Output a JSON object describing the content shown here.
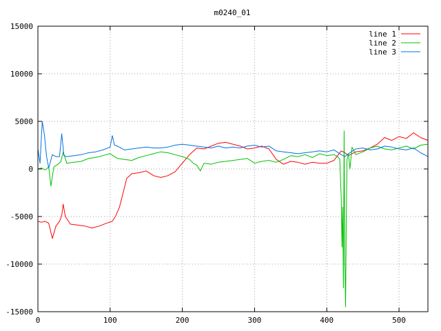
{
  "chart_data": {
    "type": "line",
    "title": "m0240_01",
    "xlabel": "",
    "ylabel": "",
    "xlim": [
      0,
      540
    ],
    "ylim": [
      -15000,
      15000
    ],
    "xticks": [
      0,
      100,
      200,
      300,
      400,
      500
    ],
    "yticks": [
      -15000,
      -10000,
      -5000,
      0,
      5000,
      10000,
      15000
    ],
    "grid": true,
    "legend_position": "top-right",
    "series": [
      {
        "name": "line 1",
        "color": "#ff0000",
        "points": [
          [
            0,
            -5500
          ],
          [
            5,
            -5600
          ],
          [
            10,
            -5500
          ],
          [
            15,
            -5700
          ],
          [
            20,
            -7300
          ],
          [
            25,
            -6000
          ],
          [
            30,
            -5500
          ],
          [
            33,
            -4900
          ],
          [
            35,
            -3700
          ],
          [
            38,
            -5000
          ],
          [
            45,
            -5800
          ],
          [
            55,
            -5900
          ],
          [
            65,
            -6000
          ],
          [
            75,
            -6200
          ],
          [
            85,
            -6000
          ],
          [
            95,
            -5700
          ],
          [
            103,
            -5500
          ],
          [
            108,
            -4900
          ],
          [
            113,
            -4000
          ],
          [
            118,
            -2500
          ],
          [
            123,
            -1000
          ],
          [
            130,
            -500
          ],
          [
            140,
            -400
          ],
          [
            150,
            -200
          ],
          [
            160,
            -700
          ],
          [
            170,
            -900
          ],
          [
            180,
            -700
          ],
          [
            190,
            -300
          ],
          [
            200,
            600
          ],
          [
            210,
            1500
          ],
          [
            220,
            2200
          ],
          [
            230,
            2100
          ],
          [
            240,
            2400
          ],
          [
            250,
            2700
          ],
          [
            260,
            2800
          ],
          [
            270,
            2600
          ],
          [
            280,
            2400
          ],
          [
            290,
            2100
          ],
          [
            300,
            2200
          ],
          [
            310,
            2400
          ],
          [
            320,
            2100
          ],
          [
            330,
            1000
          ],
          [
            340,
            500
          ],
          [
            350,
            800
          ],
          [
            360,
            700
          ],
          [
            370,
            500
          ],
          [
            380,
            700
          ],
          [
            390,
            600
          ],
          [
            400,
            600
          ],
          [
            410,
            900
          ],
          [
            420,
            1900
          ],
          [
            425,
            1700
          ],
          [
            430,
            1400
          ],
          [
            440,
            1800
          ],
          [
            450,
            1900
          ],
          [
            460,
            2200
          ],
          [
            470,
            2600
          ],
          [
            480,
            3300
          ],
          [
            490,
            3000
          ],
          [
            500,
            3400
          ],
          [
            510,
            3200
          ],
          [
            520,
            3800
          ],
          [
            530,
            3300
          ],
          [
            540,
            3000
          ]
        ]
      },
      {
        "name": "line 2",
        "color": "#00c000",
        "points": [
          [
            0,
            0
          ],
          [
            5,
            100
          ],
          [
            10,
            -100
          ],
          [
            15,
            200
          ],
          [
            18,
            -1800
          ],
          [
            22,
            200
          ],
          [
            28,
            500
          ],
          [
            32,
            800
          ],
          [
            35,
            1800
          ],
          [
            40,
            600
          ],
          [
            50,
            700
          ],
          [
            60,
            800
          ],
          [
            70,
            1100
          ],
          [
            80,
            1200
          ],
          [
            90,
            1400
          ],
          [
            100,
            1600
          ],
          [
            110,
            1100
          ],
          [
            120,
            1000
          ],
          [
            130,
            900
          ],
          [
            140,
            1200
          ],
          [
            150,
            1400
          ],
          [
            160,
            1600
          ],
          [
            170,
            1800
          ],
          [
            180,
            1700
          ],
          [
            190,
            1500
          ],
          [
            200,
            1300
          ],
          [
            210,
            1000
          ],
          [
            215,
            600
          ],
          [
            220,
            400
          ],
          [
            225,
            -200
          ],
          [
            230,
            600
          ],
          [
            240,
            500
          ],
          [
            250,
            700
          ],
          [
            260,
            800
          ],
          [
            270,
            900
          ],
          [
            280,
            1000
          ],
          [
            290,
            1100
          ],
          [
            300,
            600
          ],
          [
            310,
            800
          ],
          [
            320,
            900
          ],
          [
            330,
            700
          ],
          [
            340,
            1000
          ],
          [
            350,
            1400
          ],
          [
            360,
            1300
          ],
          [
            370,
            1500
          ],
          [
            380,
            1200
          ],
          [
            390,
            1600
          ],
          [
            400,
            1400
          ],
          [
            410,
            1500
          ],
          [
            415,
            1300
          ],
          [
            418,
            1000
          ],
          [
            420,
            -3000
          ],
          [
            421,
            -8200
          ],
          [
            422,
            -4000
          ],
          [
            423,
            -12500
          ],
          [
            424,
            4000
          ],
          [
            425,
            -10000
          ],
          [
            426,
            -14500
          ],
          [
            427,
            -5000
          ],
          [
            428,
            1000
          ],
          [
            430,
            1600
          ],
          [
            432,
            0
          ],
          [
            435,
            2300
          ],
          [
            440,
            1500
          ],
          [
            450,
            1800
          ],
          [
            460,
            2200
          ],
          [
            470,
            2400
          ],
          [
            480,
            2100
          ],
          [
            490,
            2000
          ],
          [
            500,
            2200
          ],
          [
            510,
            2400
          ],
          [
            520,
            2100
          ],
          [
            530,
            2500
          ],
          [
            540,
            2600
          ]
        ]
      },
      {
        "name": "line 3",
        "color": "#0070e0",
        "points": [
          [
            0,
            2100
          ],
          [
            3,
            600
          ],
          [
            6,
            5000
          ],
          [
            9,
            3600
          ],
          [
            12,
            1300
          ],
          [
            15,
            100
          ],
          [
            20,
            1500
          ],
          [
            25,
            1300
          ],
          [
            30,
            1300
          ],
          [
            33,
            3700
          ],
          [
            36,
            1400
          ],
          [
            40,
            1300
          ],
          [
            50,
            1400
          ],
          [
            60,
            1500
          ],
          [
            70,
            1700
          ],
          [
            80,
            1800
          ],
          [
            90,
            2000
          ],
          [
            100,
            2300
          ],
          [
            103,
            3500
          ],
          [
            106,
            2500
          ],
          [
            110,
            2400
          ],
          [
            120,
            2000
          ],
          [
            130,
            2100
          ],
          [
            140,
            2200
          ],
          [
            150,
            2300
          ],
          [
            160,
            2200
          ],
          [
            170,
            2200
          ],
          [
            180,
            2300
          ],
          [
            190,
            2500
          ],
          [
            200,
            2600
          ],
          [
            210,
            2500
          ],
          [
            220,
            2400
          ],
          [
            230,
            2300
          ],
          [
            240,
            2200
          ],
          [
            250,
            2400
          ],
          [
            260,
            2200
          ],
          [
            270,
            2300
          ],
          [
            280,
            2200
          ],
          [
            290,
            2400
          ],
          [
            300,
            2500
          ],
          [
            310,
            2300
          ],
          [
            320,
            2400
          ],
          [
            330,
            1900
          ],
          [
            340,
            1800
          ],
          [
            350,
            1700
          ],
          [
            360,
            1600
          ],
          [
            370,
            1700
          ],
          [
            380,
            1800
          ],
          [
            390,
            1900
          ],
          [
            400,
            1800
          ],
          [
            410,
            2000
          ],
          [
            420,
            1500
          ],
          [
            425,
            1300
          ],
          [
            430,
            1600
          ],
          [
            440,
            2100
          ],
          [
            450,
            2200
          ],
          [
            460,
            2000
          ],
          [
            470,
            2100
          ],
          [
            480,
            2400
          ],
          [
            490,
            2300
          ],
          [
            500,
            2100
          ],
          [
            510,
            2000
          ],
          [
            520,
            2200
          ],
          [
            530,
            1700
          ],
          [
            540,
            1300
          ]
        ]
      }
    ]
  }
}
